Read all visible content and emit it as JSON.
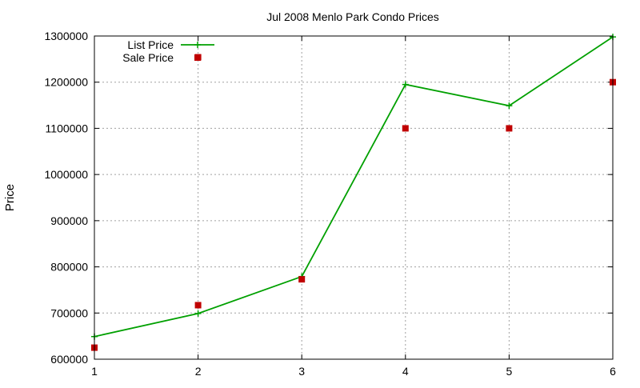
{
  "chart_data": {
    "type": "line",
    "title": "Jul 2008 Menlo Park Condo Prices",
    "xlabel": "",
    "ylabel": "Price",
    "xlim": [
      1,
      6
    ],
    "ylim": [
      600000,
      1300000
    ],
    "xticks": [
      1,
      2,
      3,
      4,
      5,
      6
    ],
    "yticks": [
      600000,
      700000,
      800000,
      900000,
      1000000,
      1100000,
      1200000,
      1300000
    ],
    "grid": true,
    "legend_position": "top-left",
    "series": [
      {
        "name": "List Price",
        "style": "line-points",
        "color": "#00a000",
        "marker": "plus",
        "points": [
          [
            1,
            649000
          ],
          [
            2,
            699000
          ],
          [
            3,
            779000
          ],
          [
            4,
            1195000
          ],
          [
            5,
            1149000
          ],
          [
            6,
            1298000
          ]
        ]
      },
      {
        "name": "Sale Price",
        "style": "points",
        "color": "#c00000",
        "marker": "square",
        "points": [
          [
            1,
            625000
          ],
          [
            2,
            717000
          ],
          [
            3,
            773000
          ],
          [
            4,
            1100000
          ],
          [
            5,
            1100000
          ],
          [
            6,
            1200000
          ],
          [
            2,
            1254000
          ]
        ]
      }
    ]
  }
}
